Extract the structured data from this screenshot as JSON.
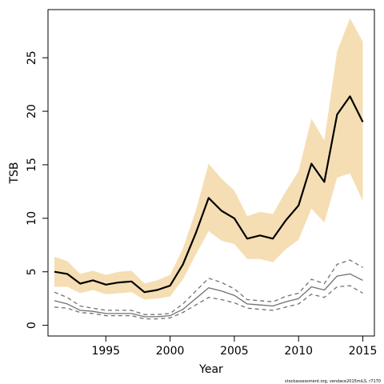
{
  "chart_data": {
    "type": "line",
    "title": "",
    "xlabel": "Year",
    "ylabel": "TSB",
    "xlim": [
      1990.5,
      2015.9
    ],
    "ylim": [
      -1.0,
      29.5
    ],
    "x_ticks": [
      1995,
      2000,
      2005,
      2010,
      2015
    ],
    "y_ticks": [
      0,
      5,
      10,
      15,
      20,
      25
    ],
    "grid": false,
    "legend": "none",
    "x": [
      1991,
      1992,
      1993,
      1994,
      1995,
      1996,
      1997,
      1998,
      1999,
      2000,
      2001,
      2002,
      2003,
      2004,
      2005,
      2006,
      2007,
      2008,
      2009,
      2010,
      2011,
      2012,
      2013,
      2014,
      2015
    ],
    "series": [
      {
        "role": "tsb",
        "style": "solid",
        "color": "#000000",
        "values": [
          5.0,
          4.8,
          3.9,
          4.2,
          3.8,
          4.0,
          4.1,
          3.1,
          3.3,
          3.7,
          5.7,
          8.6,
          11.9,
          10.7,
          10.0,
          8.1,
          8.4,
          8.1,
          9.8,
          11.2,
          15.1,
          13.4,
          19.7,
          21.4,
          19.0
        ]
      },
      {
        "role": "tsb_upper",
        "style": "band",
        "color": "#f5deb3",
        "values": [
          6.4,
          6.0,
          4.8,
          5.1,
          4.7,
          5.0,
          5.1,
          3.9,
          4.2,
          4.7,
          7.2,
          10.7,
          15.1,
          13.7,
          12.6,
          10.2,
          10.6,
          10.4,
          12.5,
          14.4,
          19.3,
          17.3,
          25.6,
          28.7,
          26.5
        ]
      },
      {
        "role": "tsb_lower",
        "style": "band",
        "color": "#f5deb3",
        "values": [
          3.6,
          3.6,
          3.0,
          3.3,
          2.9,
          3.0,
          3.1,
          2.4,
          2.5,
          2.7,
          4.3,
          6.6,
          8.8,
          7.9,
          7.6,
          6.2,
          6.2,
          5.9,
          7.1,
          8.0,
          10.9,
          9.6,
          13.8,
          14.2,
          11.6
        ]
      },
      {
        "role": "ssb",
        "style": "solid",
        "color": "#707070",
        "values": [
          2.3,
          2.0,
          1.4,
          1.3,
          1.1,
          1.1,
          1.1,
          0.8,
          0.8,
          0.9,
          1.5,
          2.5,
          3.5,
          3.2,
          2.8,
          2.0,
          1.9,
          1.8,
          2.2,
          2.5,
          3.6,
          3.3,
          4.6,
          4.8,
          4.2
        ]
      },
      {
        "role": "ssb_upper",
        "style": "dashed",
        "color": "#707070",
        "values": [
          3.1,
          2.6,
          1.8,
          1.6,
          1.4,
          1.4,
          1.4,
          1.0,
          1.0,
          1.1,
          2.0,
          3.2,
          4.4,
          4.0,
          3.4,
          2.4,
          2.3,
          2.2,
          2.7,
          3.0,
          4.3,
          3.9,
          5.7,
          6.1,
          5.4
        ]
      },
      {
        "role": "ssb_lower",
        "style": "dashed",
        "color": "#707070",
        "values": [
          1.7,
          1.6,
          1.2,
          1.1,
          0.9,
          0.9,
          0.9,
          0.6,
          0.6,
          0.7,
          1.2,
          1.9,
          2.6,
          2.4,
          2.1,
          1.6,
          1.5,
          1.4,
          1.7,
          2.0,
          2.9,
          2.6,
          3.6,
          3.7,
          3.0
        ]
      }
    ],
    "footnote": "stockassessment.org, vendace2015miLS, r7170"
  }
}
